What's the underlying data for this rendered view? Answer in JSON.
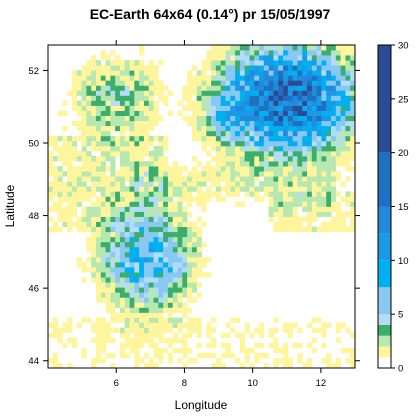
{
  "chart_data": {
    "type": "heatmap",
    "title": "EC-Earth 64x64 (0.14°) pr 15/05/1997",
    "xlabel": "Longitude",
    "ylabel": "Latitude",
    "xlim": [
      4.0,
      13.0
    ],
    "ylim": [
      43.8,
      52.7
    ],
    "x_ticks": [
      "6",
      "8",
      "10",
      "12"
    ],
    "x_tick_values": [
      6,
      8,
      10,
      12
    ],
    "y_ticks": [
      "44",
      "46",
      "48",
      "50",
      "52"
    ],
    "y_tick_values": [
      44,
      46,
      48,
      50,
      52
    ],
    "grid": false,
    "grid_resolution_deg": 0.14,
    "grid_size": [
      64,
      64
    ],
    "colorbar": {
      "ticks": [
        "0",
        "5",
        "10",
        "15",
        "20",
        "25",
        "30"
      ],
      "tick_values": [
        0,
        5,
        10,
        15,
        20,
        25,
        30
      ],
      "breaks": [
        0,
        1,
        2,
        3,
        4,
        5,
        7.5,
        10,
        12.5,
        15,
        20,
        30
      ],
      "colors": [
        "#ffffff",
        "#fff59d",
        "#b7e8b0",
        "#3aae6a",
        "#b4dcf7",
        "#88c8f2",
        "#00b0f0",
        "#1a9ae6",
        "#2389dd",
        "#1e70c1",
        "#2b4c94"
      ]
    },
    "regions": [
      {
        "name": "",
        "lon": 11.0,
        "lat": 51.2,
        "rlon": 1.9,
        "rlat": 1.4,
        "peak": 19
      },
      {
        "name": "",
        "lon": 9.8,
        "lat": 50.9,
        "rlon": 1.3,
        "rlat": 1.0,
        "peak": 11
      },
      {
        "name": "",
        "lon": 6.9,
        "lat": 46.8,
        "rlon": 1.4,
        "rlat": 1.4,
        "peak": 8
      },
      {
        "name": "",
        "lon": 6.0,
        "lat": 51.2,
        "rlon": 1.5,
        "rlat": 1.3,
        "peak": 3.5
      }
    ]
  }
}
